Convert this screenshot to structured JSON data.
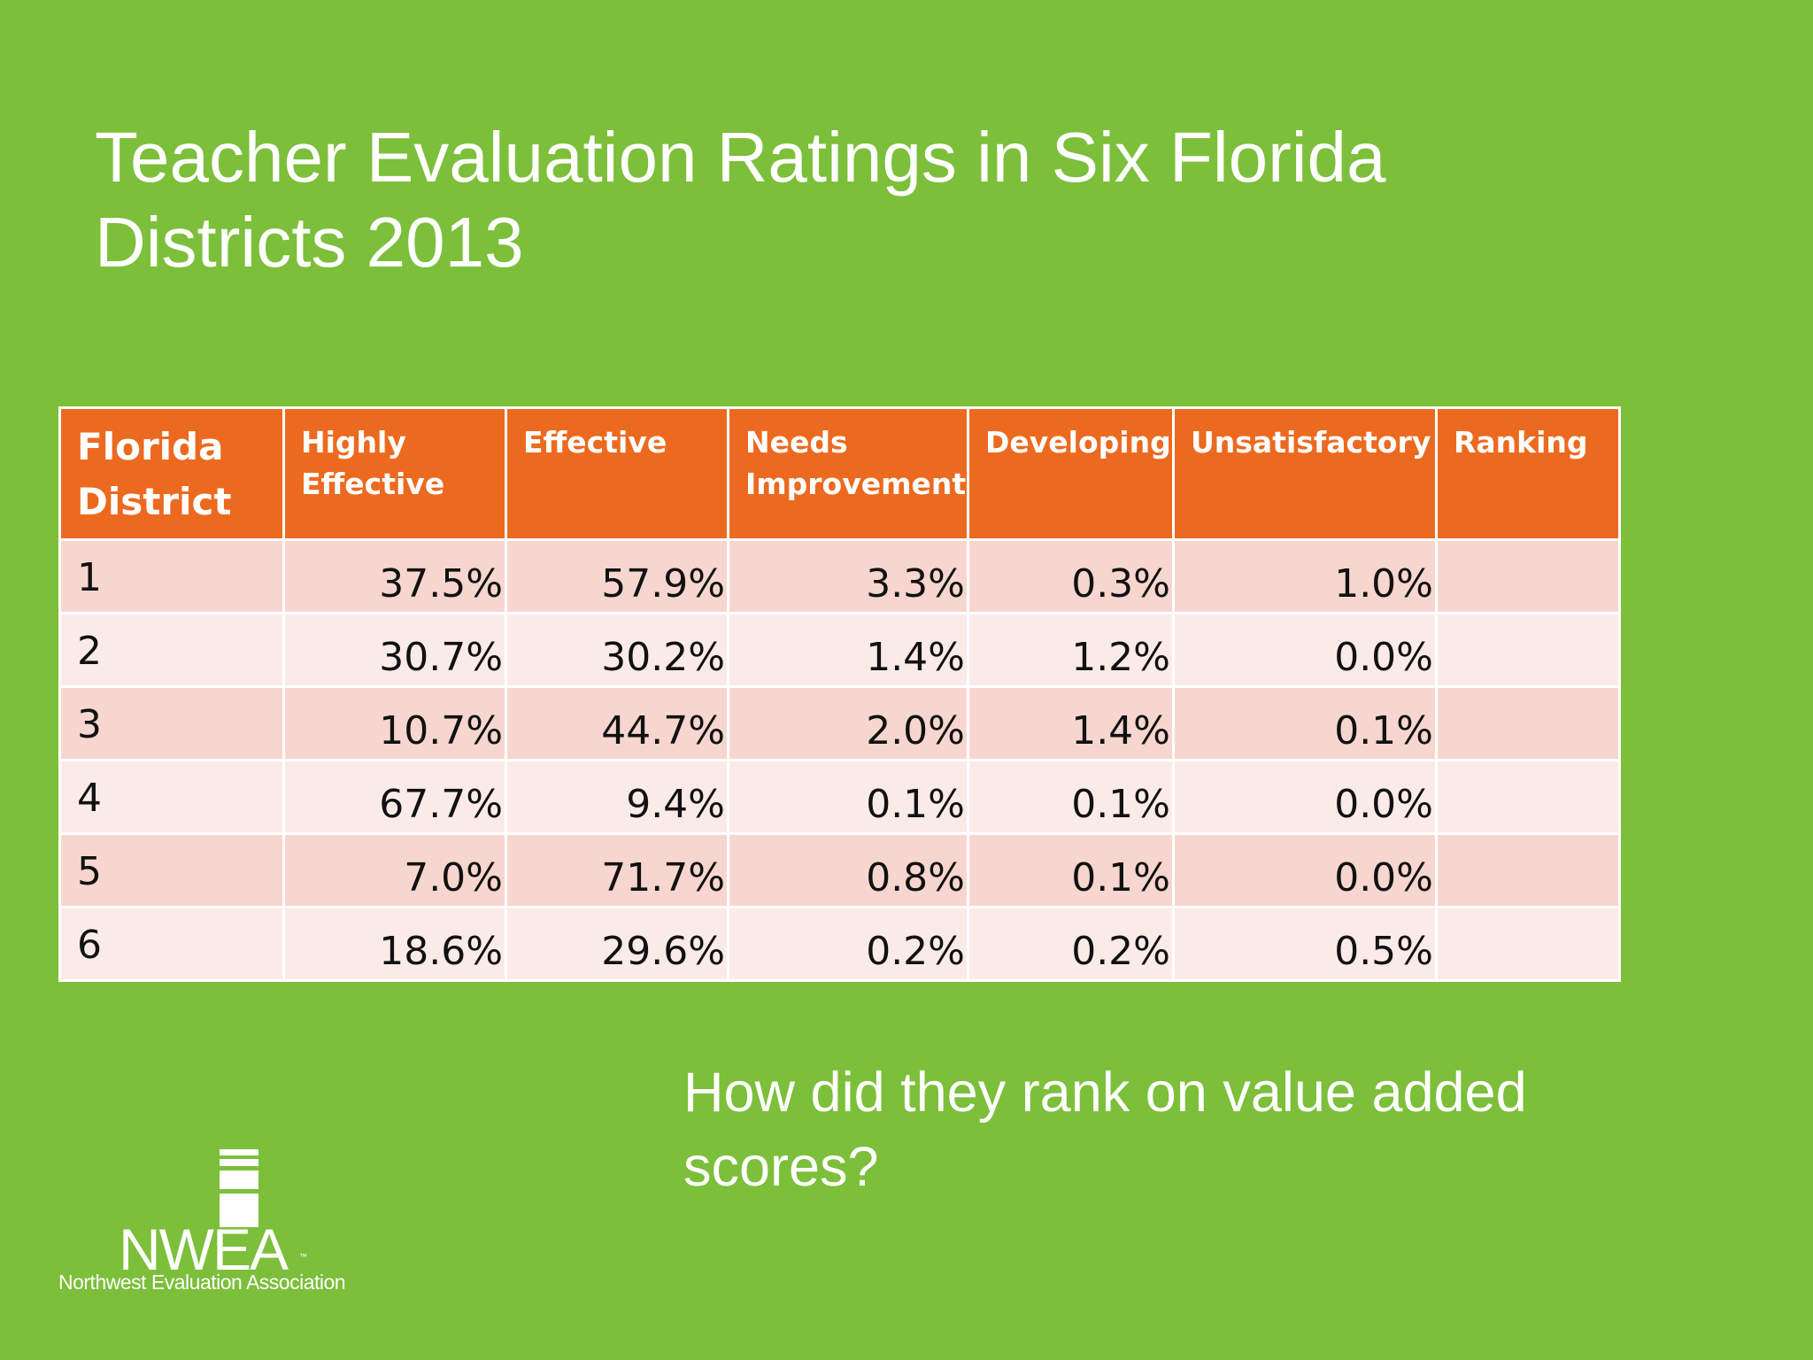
{
  "slide": {
    "title": "Teacher Evaluation Ratings in Six Florida Districts 2013",
    "question": "How did they rank on value added scores?"
  },
  "table": {
    "headers": [
      "Florida District",
      "Highly Effective",
      "Effective",
      "Needs Improvement",
      "Developing",
      "Unsatisfactory",
      "Ranking"
    ],
    "rows": [
      {
        "district": "1",
        "highly_effective": "37.5%",
        "effective": "57.9%",
        "needs_improvement": "3.3%",
        "developing": "0.3%",
        "unsatisfactory": "1.0%",
        "ranking": ""
      },
      {
        "district": "2",
        "highly_effective": "30.7%",
        "effective": "30.2%",
        "needs_improvement": "1.4%",
        "developing": "1.2%",
        "unsatisfactory": "0.0%",
        "ranking": ""
      },
      {
        "district": "3",
        "highly_effective": "10.7%",
        "effective": "44.7%",
        "needs_improvement": "2.0%",
        "developing": "1.4%",
        "unsatisfactory": "0.1%",
        "ranking": ""
      },
      {
        "district": "4",
        "highly_effective": "67.7%",
        "effective": "9.4%",
        "needs_improvement": "0.1%",
        "developing": "0.1%",
        "unsatisfactory": "0.0%",
        "ranking": ""
      },
      {
        "district": "5",
        "highly_effective": "7.0%",
        "effective": "71.7%",
        "needs_improvement": "0.8%",
        "developing": "0.1%",
        "unsatisfactory": "0.0%",
        "ranking": ""
      },
      {
        "district": "6",
        "highly_effective": "18.6%",
        "effective": "29.6%",
        "needs_improvement": "0.2%",
        "developing": "0.2%",
        "unsatisfactory": "0.5%",
        "ranking": ""
      }
    ]
  },
  "logo": {
    "name": "NWEA",
    "trademark": "™",
    "tagline": "Northwest Evaluation Association"
  },
  "colors": {
    "background": "#7cbf3a",
    "header": "#ec6a20",
    "row_odd": "#f7d6d0",
    "row_even": "#fbebe8",
    "text_light": "#ffffff",
    "text_dark": "#111111"
  }
}
